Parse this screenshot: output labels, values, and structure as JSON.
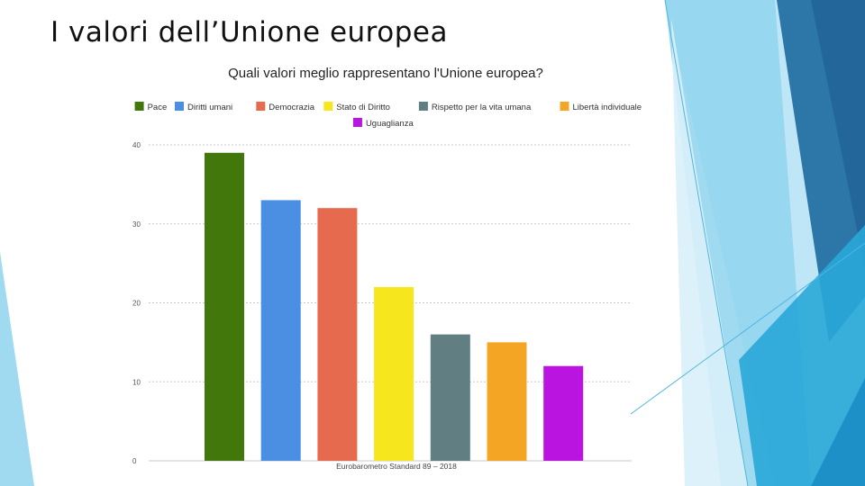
{
  "slide": {
    "title": "I valori dell’Unione europea"
  },
  "theme": {
    "background": "#ffffff",
    "decor_colors": [
      "#8fd3ee",
      "#2c76a8",
      "#29a7d8",
      "#bfe6f6",
      "#1e90c8"
    ]
  },
  "chart_data": {
    "type": "bar",
    "title": "Quali valori meglio rappresentano l'Unione europea?",
    "categories": [
      "Pace",
      "Diritti umani",
      "Democrazia",
      "Stato di Diritto",
      "Rispetto per la vita umana",
      "Libertà individuale",
      "Uguaglianza"
    ],
    "values": [
      39,
      33,
      32,
      22,
      16,
      15,
      12
    ],
    "colors": [
      "#42780b",
      "#4a8fe2",
      "#e66b4e",
      "#f5e61e",
      "#617e82",
      "#f4a523",
      "#b914e0"
    ],
    "ylim": [
      0,
      40
    ],
    "yticks": [
      "0",
      "10",
      "20",
      "30",
      "40"
    ],
    "grid": true,
    "legend_position": "top",
    "source": "Eurobarometro Standard 89 – 2018",
    "xlabel": "",
    "ylabel": ""
  }
}
